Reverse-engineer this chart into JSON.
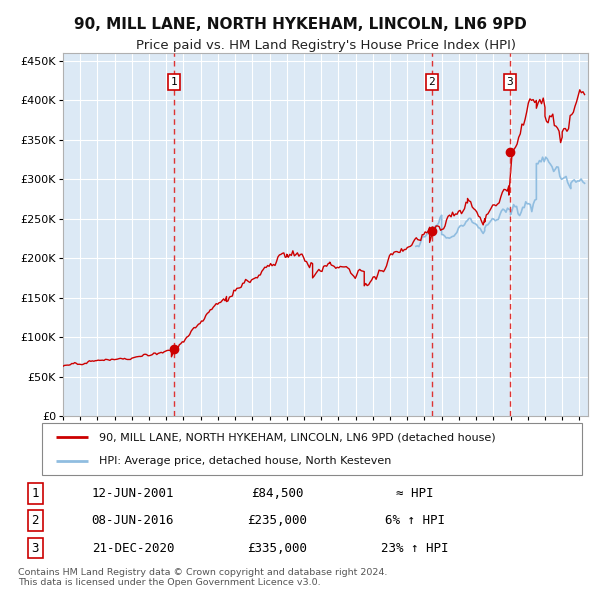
{
  "title": "90, MILL LANE, NORTH HYKEHAM, LINCOLN, LN6 9PD",
  "subtitle": "Price paid vs. HM Land Registry's House Price Index (HPI)",
  "title_fontsize": 11,
  "subtitle_fontsize": 9.5,
  "bg_color": "#dce9f5",
  "grid_color": "#ffffff",
  "hpi_line_color": "#90bde0",
  "price_line_color": "#cc0000",
  "sale_dot_color": "#cc0000",
  "vline_color": "#dd3333",
  "ylim": [
    0,
    460000
  ],
  "yticks": [
    0,
    50000,
    100000,
    150000,
    200000,
    250000,
    300000,
    350000,
    400000,
    450000
  ],
  "sales": [
    {
      "date": 2001.44,
      "price": 84500,
      "label": "1"
    },
    {
      "date": 2016.43,
      "price": 235000,
      "label": "2"
    },
    {
      "date": 2020.97,
      "price": 335000,
      "label": "3"
    }
  ],
  "legend_entries": [
    {
      "label": "90, MILL LANE, NORTH HYKEHAM, LINCOLN, LN6 9PD (detached house)",
      "color": "#cc0000"
    },
    {
      "label": "HPI: Average price, detached house, North Kesteven",
      "color": "#90bde0"
    }
  ],
  "table_rows": [
    {
      "num": "1",
      "date": "12-JUN-2001",
      "price": "£84,500",
      "hpi": "≈ HPI"
    },
    {
      "num": "2",
      "date": "08-JUN-2016",
      "price": "£235,000",
      "hpi": "6% ↑ HPI"
    },
    {
      "num": "3",
      "date": "21-DEC-2020",
      "price": "£335,000",
      "hpi": "23% ↑ HPI"
    }
  ],
  "footnote1": "Contains HM Land Registry data © Crown copyright and database right 2024.",
  "footnote2": "This data is licensed under the Open Government Licence v3.0.",
  "xmin": 1995.0,
  "xmax": 2025.5,
  "hpi_start_year": 2015.5
}
